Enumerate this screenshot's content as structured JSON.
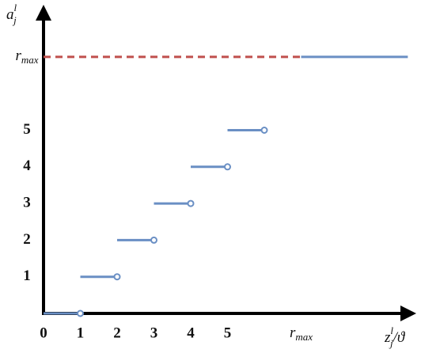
{
  "chart_data": {
    "type": "step",
    "x_label": {
      "base": "z",
      "sub": "j",
      "sup": "l",
      "rest": "/ϑ"
    },
    "y_label": {
      "base": "a",
      "sub": "j",
      "sup": "l"
    },
    "xlim": [
      0,
      10.1
    ],
    "ylim": [
      0,
      8.4
    ],
    "xticks": [
      0,
      1,
      2,
      3,
      4,
      5,
      {
        "value": 7,
        "label": "r",
        "sub": "max"
      }
    ],
    "yticks": [
      1,
      2,
      3,
      4,
      5,
      {
        "value": 7,
        "label": "r",
        "sub": "max"
      }
    ],
    "reference_line": {
      "value": 7,
      "from": 0,
      "to": 7,
      "color": "#c0504d",
      "style": "dashed"
    },
    "series": [
      {
        "color": "#6a8fc4",
        "x_start": [
          0,
          1,
          2,
          3,
          4,
          5
        ],
        "x_end": [
          1,
          2,
          3,
          4,
          5,
          6
        ],
        "values": [
          0,
          1,
          2,
          3,
          4,
          5
        ],
        "end_marker": "open-circle"
      },
      {
        "color": "#6a8fc4",
        "x_start": [
          7
        ],
        "x_end": [
          9.9
        ],
        "values": [
          7
        ]
      }
    ]
  }
}
